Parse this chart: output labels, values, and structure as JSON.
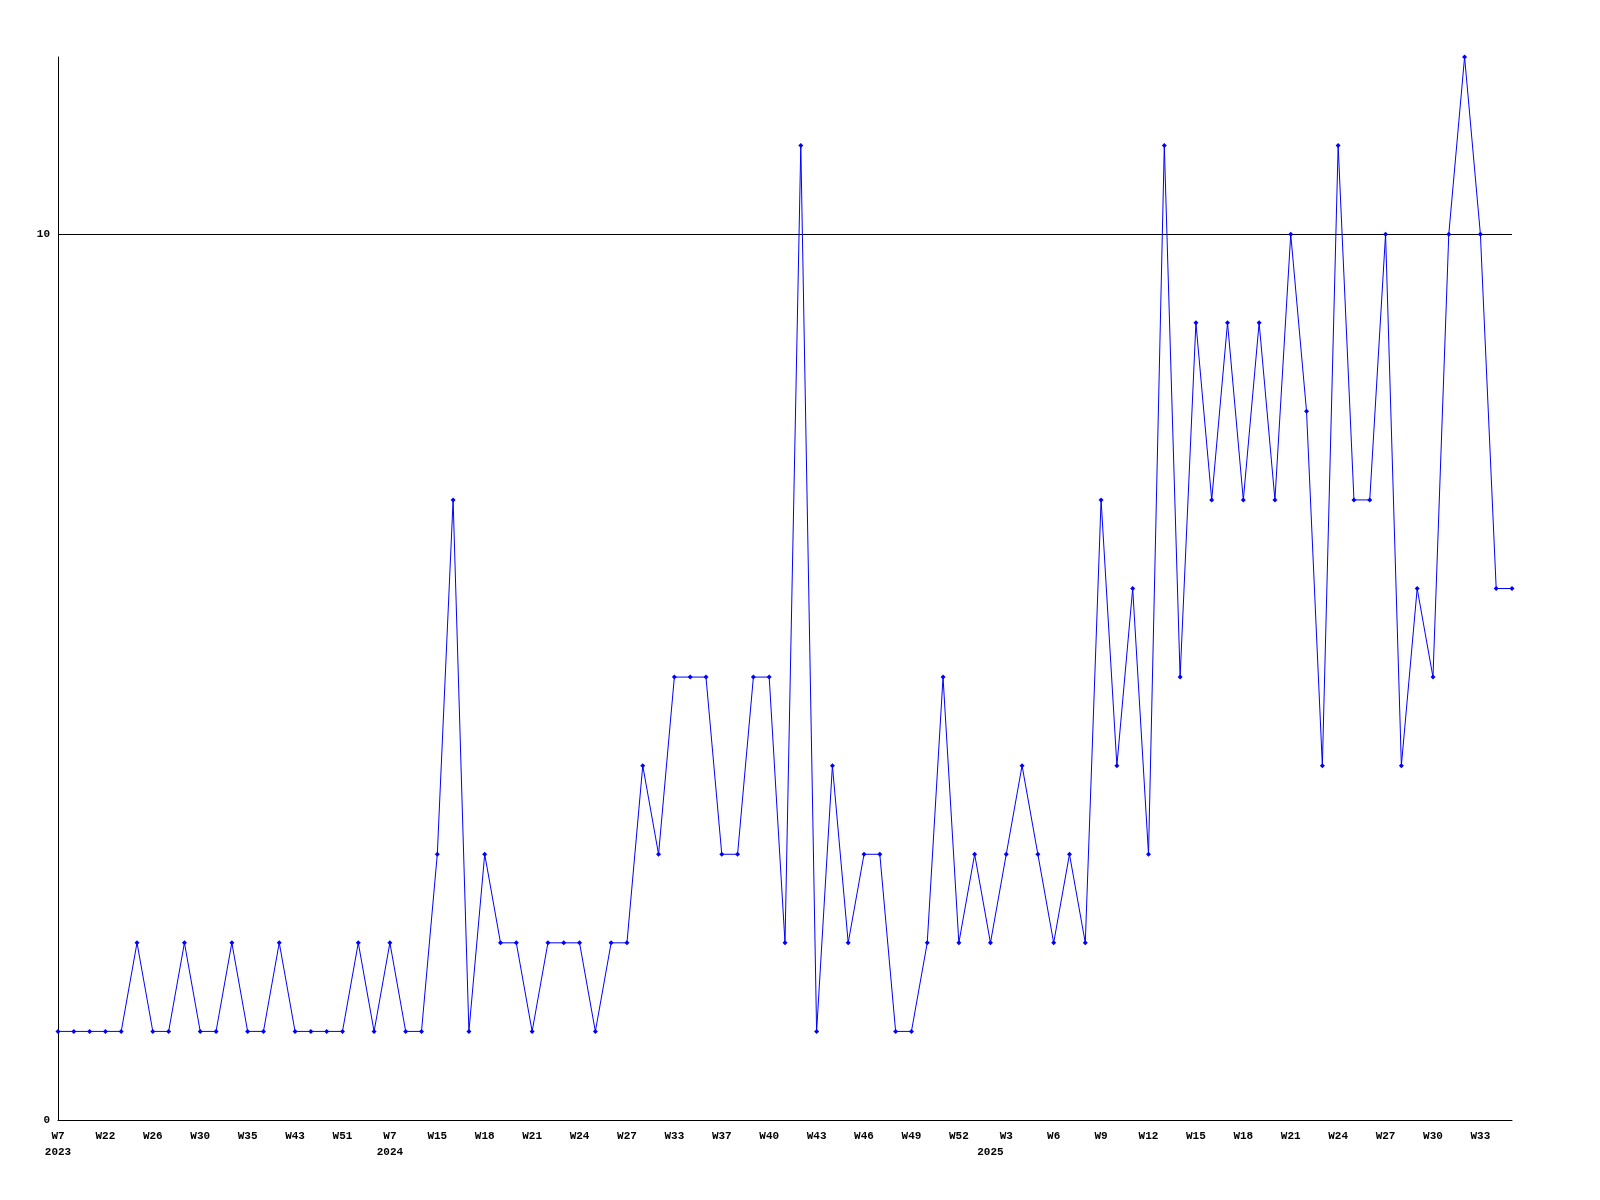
{
  "chart_data": {
    "type": "line",
    "categories": [
      "W7\n2023",
      null,
      null,
      "W22",
      null,
      null,
      "W26",
      null,
      null,
      "W30",
      null,
      null,
      "W35",
      null,
      null,
      "W43",
      null,
      null,
      "W51",
      null,
      null,
      "W7\n2024",
      null,
      null,
      "W15",
      null,
      null,
      "W18",
      null,
      null,
      "W21",
      null,
      null,
      "W24",
      null,
      null,
      "W27",
      null,
      null,
      "W33",
      null,
      null,
      "W37",
      null,
      null,
      "W40",
      null,
      null,
      "W43",
      null,
      null,
      "W46",
      null,
      null,
      "W49",
      null,
      null,
      "W52",
      null,
      "\n2025",
      "W3",
      null,
      null,
      "W6",
      null,
      null,
      "W9",
      null,
      null,
      "W12",
      null,
      null,
      "W15",
      null,
      null,
      "W18",
      null,
      null,
      "W21",
      null,
      null,
      "W24",
      null,
      null,
      "W27",
      null,
      null,
      "W30",
      null,
      null,
      "W33",
      null,
      null
    ],
    "series": [
      {
        "color": "#0000ff",
        "values": [
          1,
          1,
          1,
          1,
          1,
          2,
          1,
          1,
          2,
          1,
          1,
          2,
          1,
          1,
          2,
          1,
          1,
          1,
          1,
          2,
          1,
          2,
          1,
          1,
          3,
          7,
          1,
          3,
          2,
          2,
          1,
          2,
          2,
          2,
          1,
          2,
          2,
          4,
          3,
          5,
          5,
          5,
          3,
          3,
          5,
          5,
          2,
          11,
          1,
          4,
          2,
          3,
          3,
          1,
          1,
          2,
          5,
          2,
          3,
          2,
          3,
          4,
          3,
          2,
          3,
          2,
          7,
          4,
          6,
          3,
          11,
          5,
          9,
          7,
          9,
          7,
          9,
          7,
          10,
          8,
          4,
          11,
          7,
          7,
          10,
          4,
          6,
          5,
          10,
          12,
          10,
          6,
          6
        ]
      }
    ],
    "ylim": [
      0,
      12
    ],
    "yticks": [
      0,
      10
    ],
    "grid": "y",
    "marker": "diamond",
    "line_style": "solid"
  }
}
